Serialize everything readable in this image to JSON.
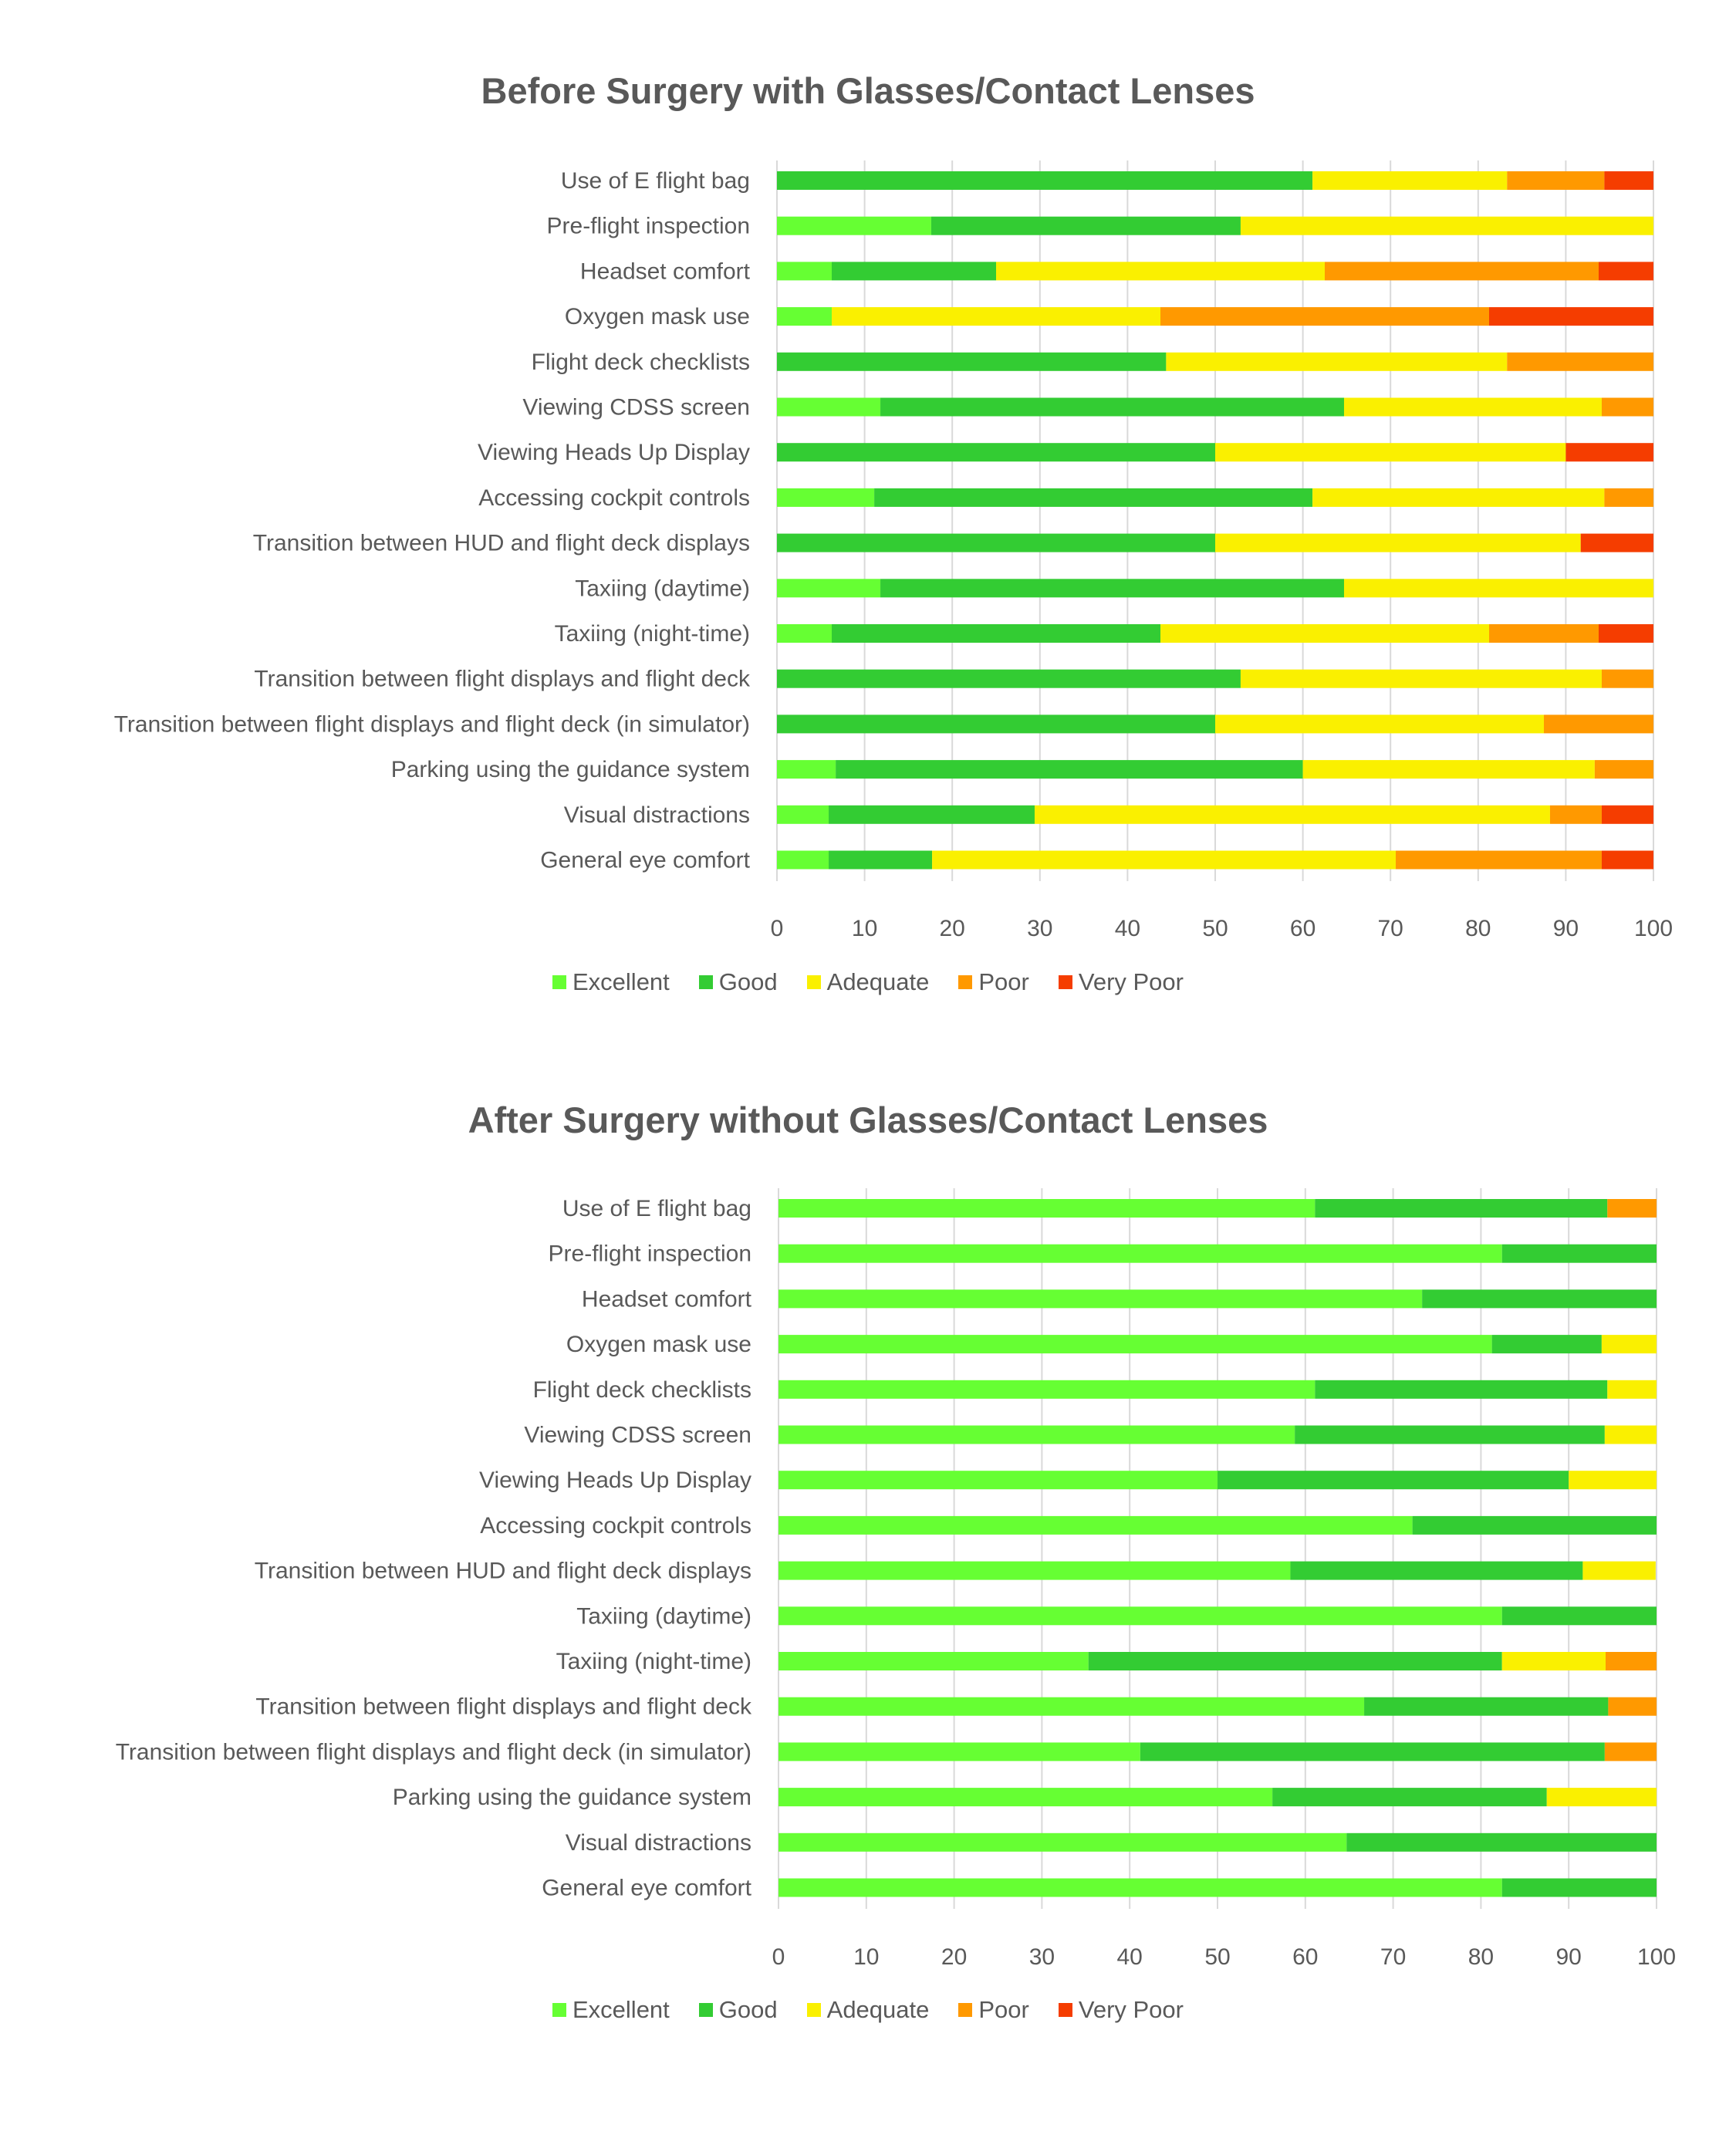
{
  "chart_data": [
    {
      "type": "bar",
      "orientation": "horizontal",
      "stacked": true,
      "title": "Before Surgery with Glasses/Contact Lenses",
      "xlabel": "",
      "ylabel": "",
      "xlim": [
        0,
        100
      ],
      "xticks": [
        "0",
        "10",
        "20",
        "30",
        "40",
        "50",
        "60",
        "70",
        "80",
        "90",
        "100"
      ],
      "grid": true,
      "legend": "bottom",
      "categories": [
        "Use of E flight bag",
        "Pre-flight inspection",
        "Headset comfort",
        "Oxygen mask use",
        "Flight deck checklists",
        "Viewing CDSS screen",
        "Viewing Heads Up Display",
        "Accessing cockpit controls",
        "Transition between HUD and flight deck displays",
        "Taxiing (daytime)",
        "Taxiing (night-time)",
        "Transition between flight displays and flight deck ",
        "Transition between flight displays and flight deck (in simulator)",
        "Parking using the guidance system",
        "Visual distractions ",
        "General eye comfort"
      ],
      "series": [
        {
          "name": "Excellent",
          "color": "#66FF33",
          "values": [
            0,
            17.6,
            6.25,
            6.25,
            0,
            11.8,
            0,
            11.1,
            0,
            11.8,
            6.25,
            0,
            0,
            6.7,
            5.9,
            5.9
          ]
        },
        {
          "name": "Good",
          "color": "#33CC33",
          "values": [
            61.1,
            35.3,
            18.75,
            0,
            44.4,
            52.9,
            50,
            50,
            50,
            52.9,
            37.5,
            52.9,
            50,
            53.3,
            23.5,
            11.8
          ]
        },
        {
          "name": "Adequate",
          "color": "#FAF000",
          "values": [
            22.2,
            47.1,
            37.5,
            37.5,
            38.9,
            29.4,
            40,
            33.3,
            41.7,
            35.3,
            37.5,
            41.2,
            37.5,
            33.3,
            58.8,
            52.9
          ]
        },
        {
          "name": "Poor",
          "color": "#FF9900",
          "values": [
            11.1,
            0,
            31.25,
            37.5,
            16.7,
            5.9,
            0,
            5.6,
            0,
            0,
            12.5,
            5.9,
            12.5,
            6.7,
            5.9,
            23.5
          ]
        },
        {
          "name": "Very Poor",
          "color": "#F53D00",
          "values": [
            5.6,
            0,
            6.25,
            18.75,
            0,
            0,
            10,
            0,
            8.3,
            0,
            6.25,
            0,
            0,
            0,
            5.9,
            5.9
          ]
        }
      ]
    },
    {
      "type": "bar",
      "orientation": "horizontal",
      "stacked": true,
      "title": "After Surgery without Glasses/Contact Lenses",
      "xlabel": "",
      "ylabel": "",
      "xlim": [
        0,
        100
      ],
      "xticks": [
        "0",
        "10",
        "20",
        "30",
        "40",
        "50",
        "60",
        "70",
        "80",
        "90",
        "100"
      ],
      "grid": true,
      "legend": "bottom",
      "categories": [
        "Use of E flight bag",
        "Pre-flight inspection",
        "Headset comfort",
        "Oxygen mask use",
        "Flight deck checklists",
        "Viewing CDSS screen",
        "Viewing Heads Up Display",
        "Accessing cockpit controls",
        "Transition between HUD and flight deck displays",
        "Taxiing (daytime)",
        "Taxiing (night-time)",
        "Transition between flight displays and flight deck ",
        "Transition between flight displays and flight deck (in simulator)",
        "Parking using the guidance system",
        "Visual distractions ",
        "General eye comfort"
      ],
      "series": [
        {
          "name": "Excellent",
          "color": "#66FF33",
          "values": [
            61.1,
            82.4,
            73.3,
            81.25,
            61.1,
            58.8,
            50,
            72.2,
            58.3,
            82.4,
            35.3,
            66.7,
            41.2,
            56.25,
            64.7,
            82.4
          ]
        },
        {
          "name": "Good",
          "color": "#33CC33",
          "values": [
            33.3,
            17.6,
            26.7,
            12.5,
            33.3,
            35.3,
            40,
            27.8,
            33.3,
            17.6,
            47.1,
            27.8,
            52.9,
            31.25,
            35.3,
            17.6
          ]
        },
        {
          "name": "Adequate",
          "color": "#FAF000",
          "values": [
            0,
            0,
            0,
            6.25,
            5.6,
            5.9,
            10,
            0,
            8.3,
            0,
            11.8,
            0,
            0,
            12.5,
            0,
            0
          ]
        },
        {
          "name": "Poor",
          "color": "#FF9900",
          "values": [
            5.6,
            0,
            0,
            0,
            0,
            0,
            0,
            0,
            0,
            0,
            5.9,
            5.6,
            5.9,
            0,
            0,
            0
          ]
        },
        {
          "name": "Very Poor",
          "color": "#F53D00",
          "values": [
            0,
            0,
            0,
            0,
            0,
            0,
            0,
            0,
            0,
            0,
            0,
            0,
            0,
            0,
            0,
            0
          ]
        }
      ]
    }
  ]
}
